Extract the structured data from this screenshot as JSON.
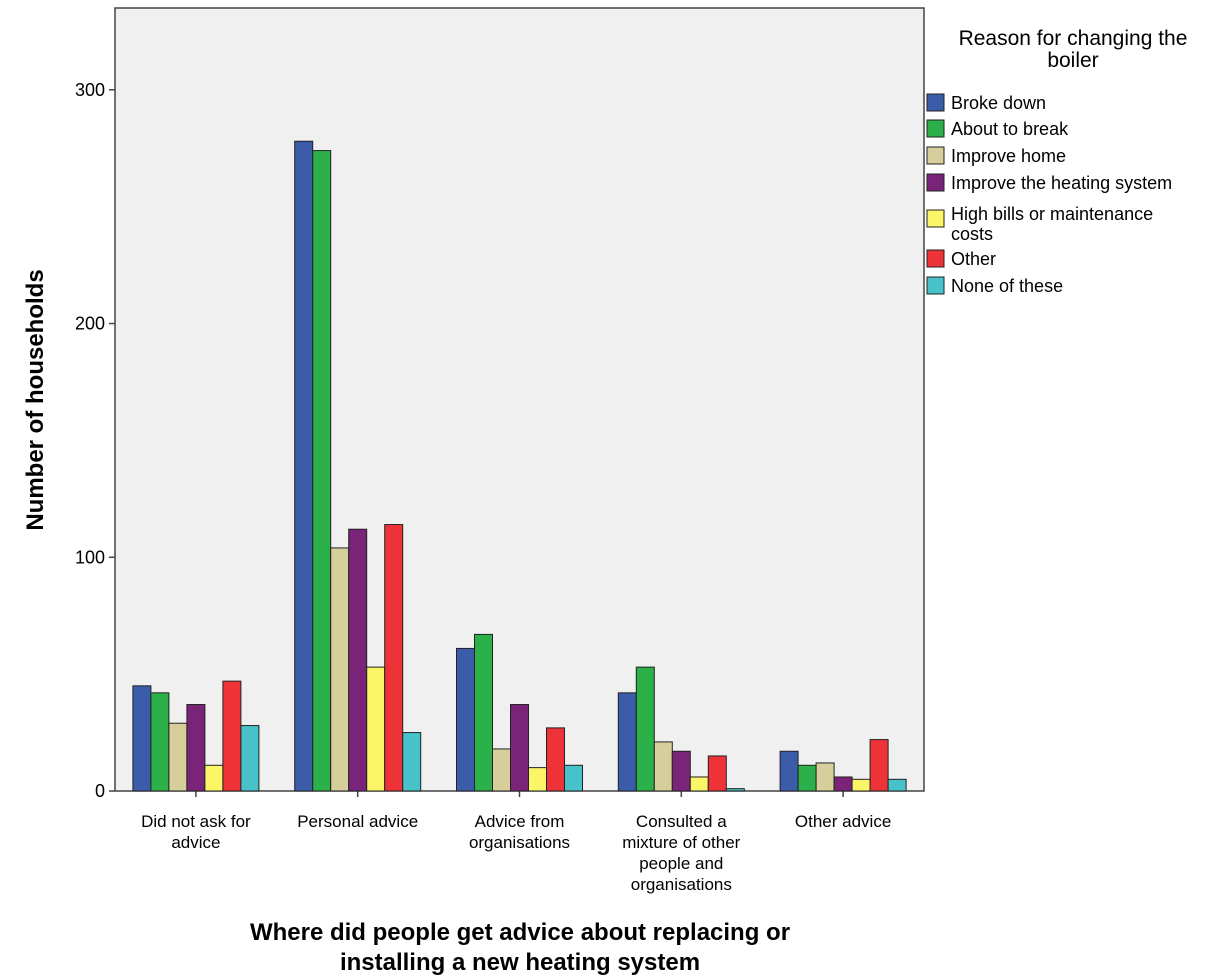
{
  "chart_data": {
    "type": "bar",
    "xlabel_lines": [
      "Where did people get advice about replacing or",
      "installing a new heating system"
    ],
    "ylabel": "Number of households",
    "ylim": [
      0,
      335
    ],
    "yticks": [
      0,
      100,
      200,
      300
    ],
    "categories": [
      [
        "Did not ask for",
        "advice"
      ],
      [
        "Personal advice"
      ],
      [
        "Advice from",
        "organisations"
      ],
      [
        "Consulted a",
        "mixture of other",
        "people and",
        "organisations"
      ],
      [
        "Other advice"
      ]
    ],
    "legend": {
      "title_lines": [
        "Reason for changing the",
        "boiler"
      ],
      "placement": "right"
    },
    "grid": false,
    "series": [
      {
        "name_lines": [
          "Broke down"
        ],
        "color": "#3b5ca8",
        "values": [
          45,
          278,
          61,
          42,
          17
        ]
      },
      {
        "name_lines": [
          "About to break"
        ],
        "color": "#2bb04a",
        "values": [
          42,
          274,
          67,
          53,
          11
        ]
      },
      {
        "name_lines": [
          "Improve home"
        ],
        "color": "#d6cf9c",
        "values": [
          29,
          104,
          18,
          21,
          12
        ]
      },
      {
        "name_lines": [
          "Improve the heating system"
        ],
        "color": "#7a2479",
        "values": [
          37,
          112,
          37,
          17,
          6
        ]
      },
      {
        "name_lines": [
          " High bills or maintenance",
          "costs"
        ],
        "color": "#fbf667",
        "values": [
          11,
          53,
          10,
          6,
          5
        ]
      },
      {
        "name_lines": [
          "Other"
        ],
        "color": "#ee3338",
        "values": [
          47,
          114,
          27,
          15,
          22
        ]
      },
      {
        "name_lines": [
          "None of these"
        ],
        "color": "#47c2c8",
        "values": [
          28,
          25,
          11,
          1,
          5
        ]
      }
    ]
  }
}
